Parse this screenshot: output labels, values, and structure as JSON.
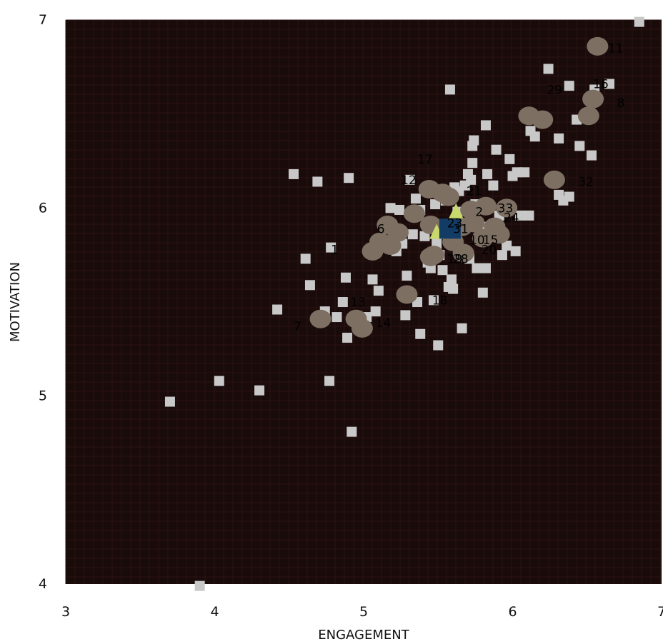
{
  "chart_data": {
    "type": "scatter",
    "title": "",
    "xlabel": "ENGAGEMENT",
    "ylabel": "MOTIVATION",
    "xlim": [
      3,
      7
    ],
    "ylim": [
      4,
      7
    ],
    "xticks": [
      "3",
      "4",
      "5",
      "6",
      "7"
    ],
    "yticks": [
      "4",
      "5",
      "6",
      "7"
    ],
    "grid": true,
    "colors": {
      "background": "#1a0b0b",
      "grid": "#2b1212",
      "squares": "#c8c8c8",
      "circles": "#7d7062",
      "triangles": "#c8d86a",
      "highlight": "#123c66"
    },
    "series": [
      {
        "marker": "square",
        "points": [
          [
            3.7,
            4.97
          ],
          [
            3.9,
            3.99
          ],
          [
            4.03,
            5.08
          ],
          [
            4.3,
            5.03
          ],
          [
            4.42,
            5.46
          ],
          [
            4.53,
            6.18
          ],
          [
            4.61,
            5.73
          ],
          [
            4.64,
            5.59
          ],
          [
            4.69,
            6.14
          ],
          [
            4.74,
            5.45
          ],
          [
            4.77,
            5.08
          ],
          [
            4.78,
            5.79
          ],
          [
            4.82,
            5.42
          ],
          [
            4.86,
            5.5
          ],
          [
            4.88,
            5.63
          ],
          [
            4.89,
            5.31
          ],
          [
            4.9,
            6.16
          ],
          [
            4.92,
            4.81
          ],
          [
            5.02,
            5.42
          ],
          [
            5.06,
            5.62
          ],
          [
            5.08,
            5.45
          ],
          [
            5.1,
            5.56
          ],
          [
            5.18,
            6.0
          ],
          [
            5.22,
            5.77
          ],
          [
            5.24,
            5.99
          ],
          [
            5.26,
            5.81
          ],
          [
            5.28,
            5.43
          ],
          [
            5.29,
            5.64
          ],
          [
            5.31,
            6.15
          ],
          [
            5.33,
            5.86
          ],
          [
            5.35,
            6.05
          ],
          [
            5.36,
            5.5
          ],
          [
            5.38,
            5.99
          ],
          [
            5.38,
            5.33
          ],
          [
            5.41,
            5.85
          ],
          [
            5.43,
            5.71
          ],
          [
            5.45,
            5.68
          ],
          [
            5.47,
            5.51
          ],
          [
            5.48,
            6.02
          ],
          [
            5.49,
            5.81
          ],
          [
            5.5,
            5.27
          ],
          [
            5.51,
            5.75
          ],
          [
            5.53,
            5.67
          ],
          [
            5.55,
            6.04
          ],
          [
            5.57,
            5.58
          ],
          [
            5.58,
            6.63
          ],
          [
            5.59,
            5.62
          ],
          [
            5.6,
            5.57
          ],
          [
            5.61,
            6.11
          ],
          [
            5.63,
            5.98
          ],
          [
            5.64,
            6.09
          ],
          [
            5.66,
            5.36
          ],
          [
            5.68,
            6.12
          ],
          [
            5.7,
            6.18
          ],
          [
            5.71,
            5.73
          ],
          [
            5.72,
            6.15
          ],
          [
            5.73,
            6.33
          ],
          [
            5.73,
            6.24
          ],
          [
            5.74,
            6.36
          ],
          [
            5.75,
            6.02
          ],
          [
            5.76,
            5.68
          ],
          [
            5.77,
            5.92
          ],
          [
            5.79,
            5.9
          ],
          [
            5.8,
            5.55
          ],
          [
            5.82,
            6.44
          ],
          [
            5.82,
            5.68
          ],
          [
            5.83,
            6.18
          ],
          [
            5.85,
            5.89
          ],
          [
            5.87,
            6.12
          ],
          [
            5.89,
            6.31
          ],
          [
            5.91,
            5.96
          ],
          [
            5.93,
            5.75
          ],
          [
            5.96,
            5.8
          ],
          [
            5.98,
            6.26
          ],
          [
            6.0,
            6.17
          ],
          [
            6.02,
            5.77
          ],
          [
            6.03,
            6.19
          ],
          [
            6.05,
            5.96
          ],
          [
            6.08,
            6.19
          ],
          [
            6.11,
            5.96
          ],
          [
            6.12,
            6.41
          ],
          [
            6.15,
            6.38
          ],
          [
            6.24,
            6.74
          ],
          [
            6.31,
            6.37
          ],
          [
            6.31,
            6.07
          ],
          [
            6.34,
            6.04
          ],
          [
            6.38,
            6.65
          ],
          [
            6.38,
            6.06
          ],
          [
            6.43,
            6.47
          ],
          [
            6.45,
            6.33
          ],
          [
            6.53,
            6.28
          ],
          [
            6.55,
            6.63
          ],
          [
            6.65,
            6.66
          ],
          [
            6.85,
            6.99
          ]
        ]
      },
      {
        "marker": "circle",
        "points": [
          [
            4.71,
            5.41
          ],
          [
            4.95,
            5.41
          ],
          [
            4.99,
            5.36
          ],
          [
            5.06,
            5.77
          ],
          [
            5.11,
            5.82
          ],
          [
            5.16,
            5.91
          ],
          [
            5.18,
            5.8
          ],
          [
            5.23,
            5.87
          ],
          [
            5.29,
            5.54
          ],
          [
            5.34,
            5.97
          ],
          [
            5.44,
            6.1
          ],
          [
            5.45,
            5.91
          ],
          [
            5.45,
            5.74
          ],
          [
            5.47,
            5.75
          ],
          [
            5.53,
            6.08
          ],
          [
            5.57,
            6.06
          ],
          [
            5.6,
            5.82
          ],
          [
            5.66,
            5.9
          ],
          [
            5.67,
            5.76
          ],
          [
            5.72,
            5.99
          ],
          [
            5.74,
            5.92
          ],
          [
            5.8,
            5.84
          ],
          [
            5.82,
            6.01
          ],
          [
            5.88,
            5.9
          ],
          [
            5.91,
            5.86
          ],
          [
            5.96,
            6.0
          ],
          [
            6.11,
            6.49
          ],
          [
            6.2,
            6.47
          ],
          [
            6.28,
            6.15
          ],
          [
            6.51,
            6.49
          ],
          [
            6.54,
            6.58
          ],
          [
            6.57,
            6.86
          ]
        ]
      },
      {
        "marker": "triangle",
        "points": [
          [
            5.49,
            5.87
          ],
          [
            5.62,
            5.98
          ]
        ]
      },
      {
        "marker": "big-square",
        "points": [
          [
            5.58,
            5.89
          ]
        ]
      }
    ],
    "annotations": [
      {
        "text": "11",
        "x": 6.64,
        "y": 6.85
      },
      {
        "text": "29",
        "x": 6.23,
        "y": 6.63
      },
      {
        "text": "16",
        "x": 6.54,
        "y": 6.66
      },
      {
        "text": "8",
        "x": 6.7,
        "y": 6.56
      },
      {
        "text": "32",
        "x": 6.44,
        "y": 6.14
      },
      {
        "text": "17",
        "x": 5.36,
        "y": 6.26
      },
      {
        "text": "12",
        "x": 5.25,
        "y": 6.15
      },
      {
        "text": "21",
        "x": 5.69,
        "y": 6.09
      },
      {
        "text": "33",
        "x": 5.9,
        "y": 6.0
      },
      {
        "text": "2",
        "x": 5.75,
        "y": 5.98
      },
      {
        "text": "24",
        "x": 5.94,
        "y": 5.95
      },
      {
        "text": "23",
        "x": 5.56,
        "y": 5.92
      },
      {
        "text": "31",
        "x": 5.6,
        "y": 5.89
      },
      {
        "text": "10",
        "x": 5.71,
        "y": 5.83
      },
      {
        "text": "15",
        "x": 5.8,
        "y": 5.83
      },
      {
        "text": "20",
        "x": 5.79,
        "y": 5.78
      },
      {
        "text": "19",
        "x": 5.56,
        "y": 5.73
      },
      {
        "text": "28",
        "x": 5.6,
        "y": 5.73
      },
      {
        "text": "18",
        "x": 5.46,
        "y": 5.51
      },
      {
        "text": "13",
        "x": 4.91,
        "y": 5.5
      },
      {
        "text": "14",
        "x": 5.08,
        "y": 5.39
      },
      {
        "text": "7",
        "x": 4.53,
        "y": 5.37
      },
      {
        "text": "1",
        "x": 4.78,
        "y": 5.78
      },
      {
        "text": "6",
        "x": 5.09,
        "y": 5.89
      }
    ]
  }
}
